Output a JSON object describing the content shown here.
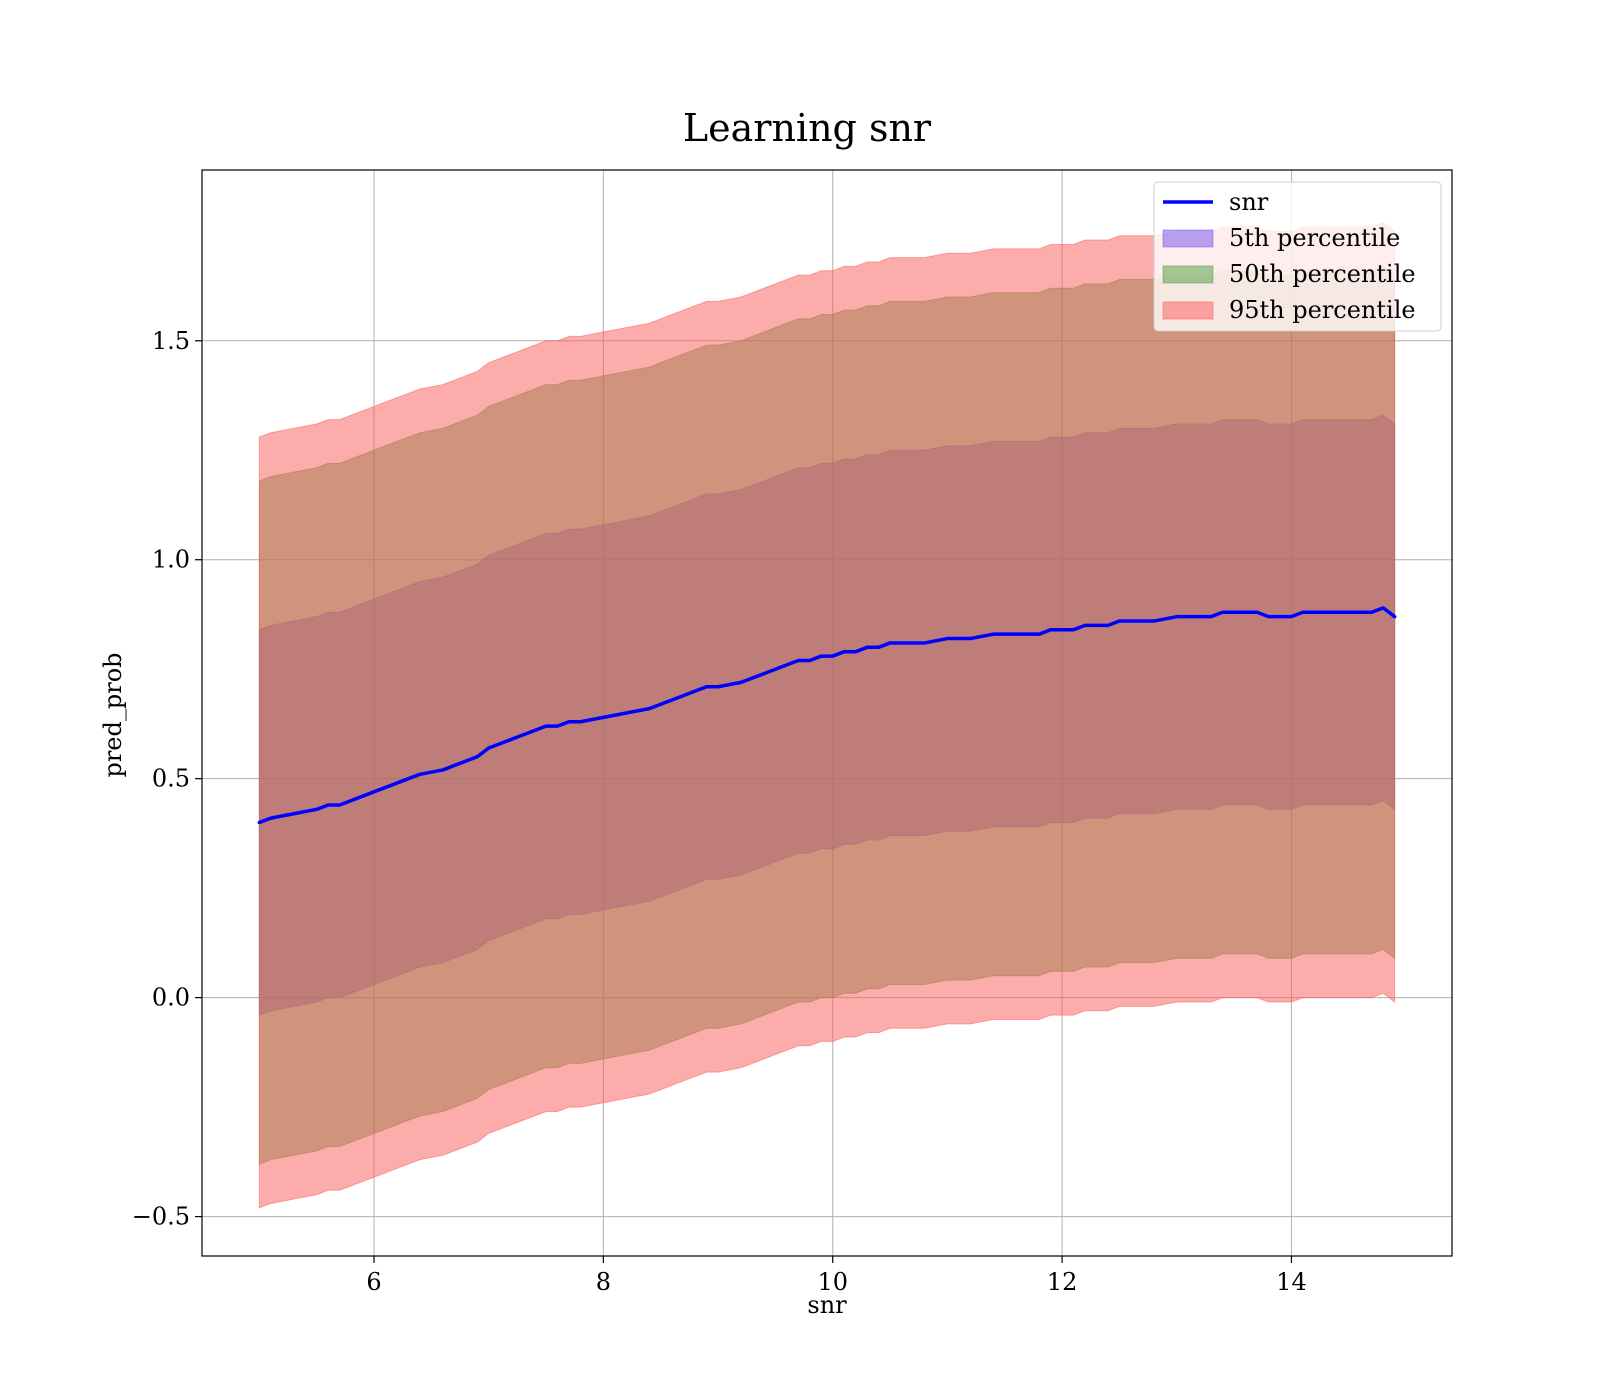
{
  "chart_data": {
    "type": "area",
    "title": "Learning snr",
    "xlabel": "snr",
    "ylabel": "pred_prob",
    "xlim": [
      4.5,
      15.4
    ],
    "ylim": [
      -0.59,
      1.89
    ],
    "grid": true,
    "legend_position": "top-right",
    "x_ticks": [
      6,
      8,
      10,
      12,
      14
    ],
    "x_tick_labels": [
      "6",
      "8",
      "10",
      "12",
      "14"
    ],
    "y_ticks": [
      -0.5,
      0.0,
      0.5,
      1.0,
      1.5
    ],
    "y_tick_labels": [
      "−0.5",
      "0.0",
      "0.5",
      "1.0",
      "1.5"
    ],
    "x": [
      5.0,
      5.1,
      5.3,
      5.5,
      5.6,
      5.7,
      5.8,
      6.0,
      6.2,
      6.4,
      6.6,
      6.7,
      6.8,
      6.9,
      7.0,
      7.1,
      7.2,
      7.3,
      7.4,
      7.5,
      7.6,
      7.7,
      7.8,
      8.0,
      8.2,
      8.4,
      8.5,
      8.6,
      8.7,
      8.8,
      8.9,
      9.0,
      9.2,
      9.4,
      9.5,
      9.6,
      9.7,
      9.8,
      9.9,
      10.0,
      10.1,
      10.2,
      10.3,
      10.4,
      10.5,
      10.6,
      10.7,
      10.8,
      11.0,
      11.2,
      11.4,
      11.6,
      11.8,
      11.9,
      12.0,
      12.1,
      12.2,
      12.3,
      12.4,
      12.5,
      12.6,
      12.7,
      12.8,
      13.0,
      13.2,
      13.3,
      13.4,
      13.5,
      13.6,
      13.7,
      13.8,
      13.9,
      14.0,
      14.1,
      14.2,
      14.3,
      14.4,
      14.5,
      14.6,
      14.7,
      14.8,
      14.9
    ],
    "series": [
      {
        "name": "snr",
        "color": "#0000ff",
        "values": [
          0.4,
          0.41,
          0.42,
          0.43,
          0.44,
          0.44,
          0.45,
          0.47,
          0.49,
          0.51,
          0.52,
          0.53,
          0.54,
          0.55,
          0.57,
          0.58,
          0.59,
          0.6,
          0.61,
          0.62,
          0.62,
          0.63,
          0.63,
          0.64,
          0.65,
          0.66,
          0.67,
          0.68,
          0.69,
          0.7,
          0.71,
          0.71,
          0.72,
          0.74,
          0.75,
          0.76,
          0.77,
          0.77,
          0.78,
          0.78,
          0.79,
          0.79,
          0.8,
          0.8,
          0.81,
          0.81,
          0.81,
          0.81,
          0.82,
          0.82,
          0.83,
          0.83,
          0.83,
          0.84,
          0.84,
          0.84,
          0.85,
          0.85,
          0.85,
          0.86,
          0.86,
          0.86,
          0.86,
          0.87,
          0.87,
          0.87,
          0.88,
          0.88,
          0.88,
          0.88,
          0.87,
          0.87,
          0.87,
          0.88,
          0.88,
          0.88,
          0.88,
          0.88,
          0.88,
          0.88,
          0.89,
          0.87
        ]
      },
      {
        "name": "5th percentile",
        "color": "#6f4ef0",
        "lower": [
          -0.04,
          -0.03,
          -0.02,
          -0.01,
          0.0,
          0.0,
          0.01,
          0.03,
          0.05,
          0.07,
          0.08,
          0.09,
          0.1,
          0.11,
          0.13,
          0.14,
          0.15,
          0.16,
          0.17,
          0.18,
          0.18,
          0.19,
          0.19,
          0.2,
          0.21,
          0.22,
          0.23,
          0.24,
          0.25,
          0.26,
          0.27,
          0.27,
          0.28,
          0.3,
          0.31,
          0.32,
          0.33,
          0.33,
          0.34,
          0.34,
          0.35,
          0.35,
          0.36,
          0.36,
          0.37,
          0.37,
          0.37,
          0.37,
          0.38,
          0.38,
          0.39,
          0.39,
          0.39,
          0.4,
          0.4,
          0.4,
          0.41,
          0.41,
          0.41,
          0.42,
          0.42,
          0.42,
          0.42,
          0.43,
          0.43,
          0.43,
          0.44,
          0.44,
          0.44,
          0.44,
          0.43,
          0.43,
          0.43,
          0.44,
          0.44,
          0.44,
          0.44,
          0.44,
          0.44,
          0.44,
          0.45,
          0.43
        ],
        "upper": [
          0.84,
          0.85,
          0.86,
          0.87,
          0.88,
          0.88,
          0.89,
          0.91,
          0.93,
          0.95,
          0.96,
          0.97,
          0.98,
          0.99,
          1.01,
          1.02,
          1.03,
          1.04,
          1.05,
          1.06,
          1.06,
          1.07,
          1.07,
          1.08,
          1.09,
          1.1,
          1.11,
          1.12,
          1.13,
          1.14,
          1.15,
          1.15,
          1.16,
          1.18,
          1.19,
          1.2,
          1.21,
          1.21,
          1.22,
          1.22,
          1.23,
          1.23,
          1.24,
          1.24,
          1.25,
          1.25,
          1.25,
          1.25,
          1.26,
          1.26,
          1.27,
          1.27,
          1.27,
          1.28,
          1.28,
          1.28,
          1.29,
          1.29,
          1.29,
          1.3,
          1.3,
          1.3,
          1.3,
          1.31,
          1.31,
          1.31,
          1.32,
          1.32,
          1.32,
          1.32,
          1.31,
          1.31,
          1.31,
          1.32,
          1.32,
          1.32,
          1.32,
          1.32,
          1.32,
          1.32,
          1.33,
          1.31
        ]
      },
      {
        "name": "50th percentile",
        "color": "#4a9c3a",
        "lower": [
          -0.38,
          -0.37,
          -0.36,
          -0.35,
          -0.34,
          -0.34,
          -0.33,
          -0.31,
          -0.29,
          -0.27,
          -0.26,
          -0.25,
          -0.24,
          -0.23,
          -0.21,
          -0.2,
          -0.19,
          -0.18,
          -0.17,
          -0.16,
          -0.16,
          -0.15,
          -0.15,
          -0.14,
          -0.13,
          -0.12,
          -0.11,
          -0.1,
          -0.09,
          -0.08,
          -0.07,
          -0.07,
          -0.06,
          -0.04,
          -0.03,
          -0.02,
          -0.01,
          -0.01,
          0.0,
          0.0,
          0.01,
          0.01,
          0.02,
          0.02,
          0.03,
          0.03,
          0.03,
          0.03,
          0.04,
          0.04,
          0.05,
          0.05,
          0.05,
          0.06,
          0.06,
          0.06,
          0.07,
          0.07,
          0.07,
          0.08,
          0.08,
          0.08,
          0.08,
          0.09,
          0.09,
          0.09,
          0.1,
          0.1,
          0.1,
          0.1,
          0.09,
          0.09,
          0.09,
          0.1,
          0.1,
          0.1,
          0.1,
          0.1,
          0.1,
          0.1,
          0.11,
          0.09
        ],
        "upper": [
          1.18,
          1.19,
          1.2,
          1.21,
          1.22,
          1.22,
          1.23,
          1.25,
          1.27,
          1.29,
          1.3,
          1.31,
          1.32,
          1.33,
          1.35,
          1.36,
          1.37,
          1.38,
          1.39,
          1.4,
          1.4,
          1.41,
          1.41,
          1.42,
          1.43,
          1.44,
          1.45,
          1.46,
          1.47,
          1.48,
          1.49,
          1.49,
          1.5,
          1.52,
          1.53,
          1.54,
          1.55,
          1.55,
          1.56,
          1.56,
          1.57,
          1.57,
          1.58,
          1.58,
          1.59,
          1.59,
          1.59,
          1.59,
          1.6,
          1.6,
          1.61,
          1.61,
          1.61,
          1.62,
          1.62,
          1.62,
          1.63,
          1.63,
          1.63,
          1.64,
          1.64,
          1.64,
          1.64,
          1.65,
          1.65,
          1.65,
          1.66,
          1.66,
          1.66,
          1.66,
          1.65,
          1.65,
          1.65,
          1.66,
          1.66,
          1.66,
          1.66,
          1.66,
          1.66,
          1.66,
          1.67,
          1.65
        ]
      },
      {
        "name": "95th percentile",
        "color": "#fc5a5a",
        "lower": [
          -0.48,
          -0.47,
          -0.46,
          -0.45,
          -0.44,
          -0.44,
          -0.43,
          -0.41,
          -0.39,
          -0.37,
          -0.36,
          -0.35,
          -0.34,
          -0.33,
          -0.31,
          -0.3,
          -0.29,
          -0.28,
          -0.27,
          -0.26,
          -0.26,
          -0.25,
          -0.25,
          -0.24,
          -0.23,
          -0.22,
          -0.21,
          -0.2,
          -0.19,
          -0.18,
          -0.17,
          -0.17,
          -0.16,
          -0.14,
          -0.13,
          -0.12,
          -0.11,
          -0.11,
          -0.1,
          -0.1,
          -0.09,
          -0.09,
          -0.08,
          -0.08,
          -0.07,
          -0.07,
          -0.07,
          -0.07,
          -0.06,
          -0.06,
          -0.05,
          -0.05,
          -0.05,
          -0.04,
          -0.04,
          -0.04,
          -0.03,
          -0.03,
          -0.03,
          -0.02,
          -0.02,
          -0.02,
          -0.02,
          -0.01,
          -0.01,
          -0.01,
          0.0,
          0.0,
          0.0,
          0.0,
          -0.01,
          -0.01,
          -0.01,
          0.0,
          0.0,
          0.0,
          0.0,
          0.0,
          0.0,
          0.0,
          0.01,
          -0.01
        ],
        "upper": [
          1.28,
          1.29,
          1.3,
          1.31,
          1.32,
          1.32,
          1.33,
          1.35,
          1.37,
          1.39,
          1.4,
          1.41,
          1.42,
          1.43,
          1.45,
          1.46,
          1.47,
          1.48,
          1.49,
          1.5,
          1.5,
          1.51,
          1.51,
          1.52,
          1.53,
          1.54,
          1.55,
          1.56,
          1.57,
          1.58,
          1.59,
          1.59,
          1.6,
          1.62,
          1.63,
          1.64,
          1.65,
          1.65,
          1.66,
          1.66,
          1.67,
          1.67,
          1.68,
          1.68,
          1.69,
          1.69,
          1.69,
          1.69,
          1.7,
          1.7,
          1.71,
          1.71,
          1.71,
          1.72,
          1.72,
          1.72,
          1.73,
          1.73,
          1.73,
          1.74,
          1.74,
          1.74,
          1.74,
          1.75,
          1.75,
          1.75,
          1.76,
          1.76,
          1.76,
          1.76,
          1.75,
          1.75,
          1.75,
          1.76,
          1.76,
          1.76,
          1.76,
          1.76,
          1.76,
          1.76,
          1.77,
          1.75
        ]
      }
    ]
  }
}
